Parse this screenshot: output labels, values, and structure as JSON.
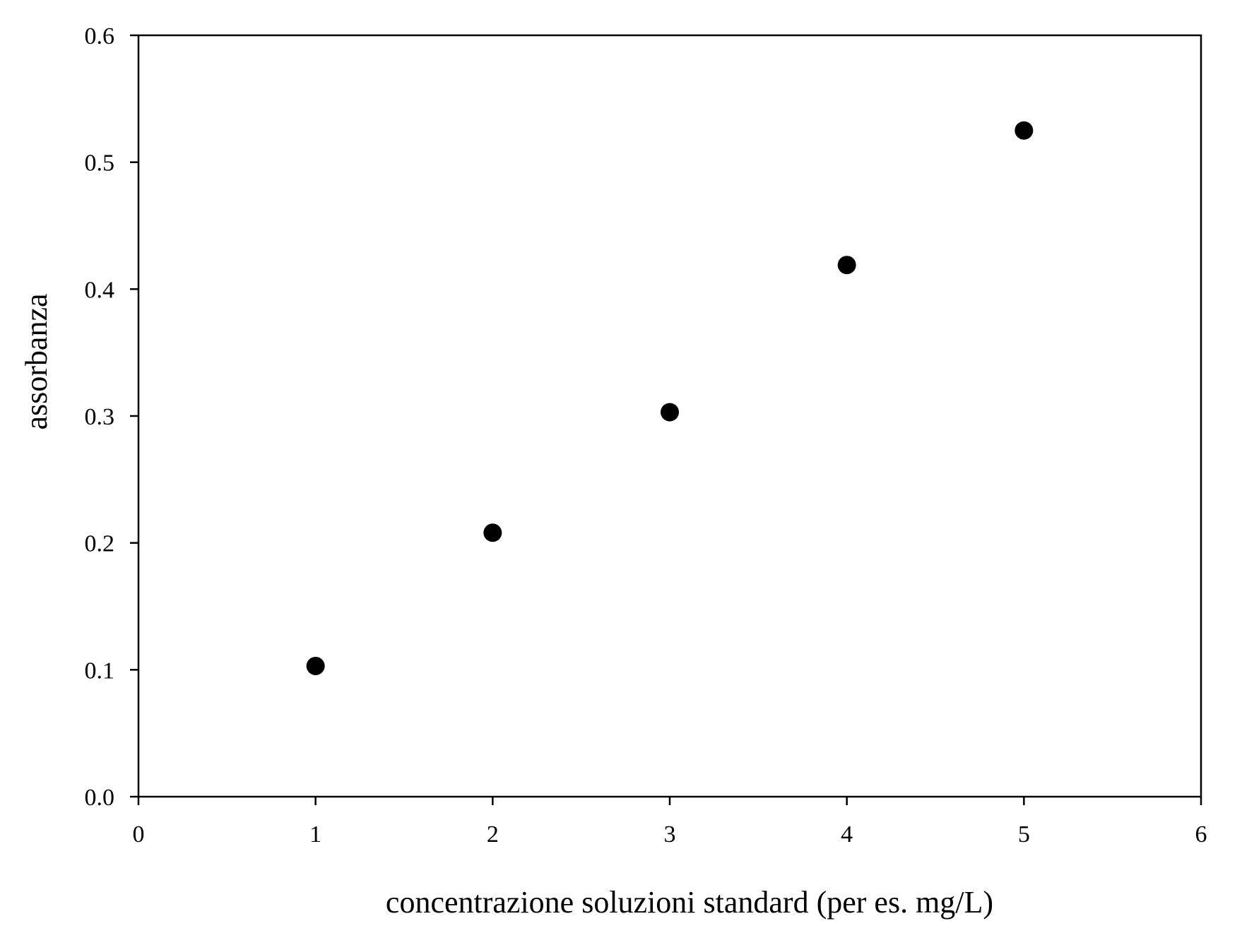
{
  "chart_data": {
    "type": "scatter",
    "xlabel": "concentrazione soluzioni standard (per es. mg/L)",
    "ylabel": "assorbanza",
    "xlim": [
      0,
      6
    ],
    "ylim": [
      0,
      0.6
    ],
    "x_ticks": [
      "0",
      "1",
      "2",
      "3",
      "4",
      "5",
      "6"
    ],
    "y_ticks": [
      "0.0",
      "0.1",
      "0.2",
      "0.3",
      "0.4",
      "0.5",
      "0.6"
    ],
    "grid": false,
    "marker_color": "#000000",
    "series": [
      {
        "points": [
          {
            "x": 1,
            "y": 0.103
          },
          {
            "x": 2,
            "y": 0.208
          },
          {
            "x": 3,
            "y": 0.303
          },
          {
            "x": 4,
            "y": 0.419
          },
          {
            "x": 5,
            "y": 0.525
          }
        ]
      }
    ]
  }
}
